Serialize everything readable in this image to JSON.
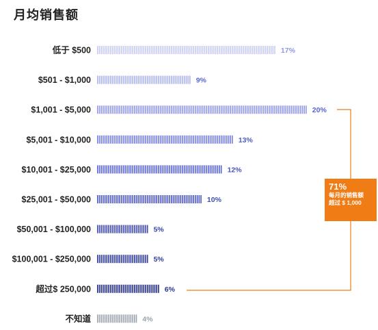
{
  "header": {
    "title": "月均销售额"
  },
  "callout": {
    "value": "71%",
    "text": "每月的销售额超过 $ 1,000"
  },
  "colors": {
    "accent": "#f07c15",
    "bar_light": "#c7cbf3",
    "bar_mid": "#5a66d8",
    "bar_dark": "#1d2a86",
    "unknown_bar": "#9aa4ad"
  },
  "chart_data": {
    "type": "bar",
    "orientation": "horizontal",
    "title": "月均销售额",
    "categories": [
      "低于 $500",
      "$501 - $1,000",
      "$1,001 - $5,000",
      "$5,001 - $10,000",
      "$10,001 - $25,000",
      "$25,001 - $50,000",
      "$50,001 - $100,000",
      "$100,001 - $250,000",
      "超过$ 250,000",
      "不知道"
    ],
    "values": [
      17,
      9,
      20,
      13,
      12,
      10,
      5,
      5,
      6,
      4
    ],
    "labels": [
      "17%",
      "9%",
      "20%",
      "13%",
      "12%",
      "10%",
      "5%",
      "5%",
      "6%",
      "4%"
    ],
    "unit": "%",
    "grid": false,
    "legend": "none"
  }
}
